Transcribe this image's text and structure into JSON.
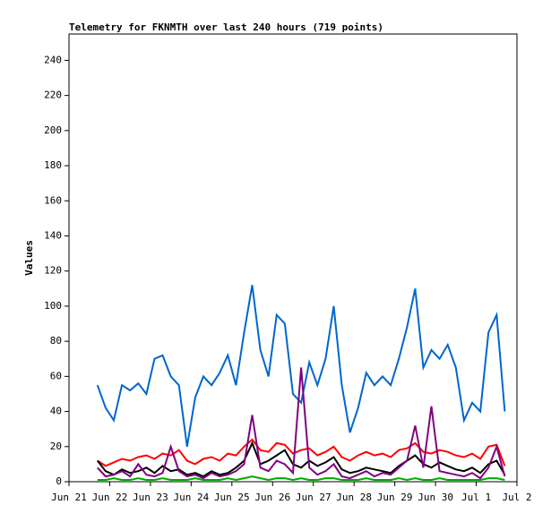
{
  "chart_data": {
    "type": "line",
    "title": "Telemetry for FKNMTH over last 240 hours (719 points)",
    "ylabel": "Values",
    "xlim": [
      0,
      11
    ],
    "xticks": [
      {
        "value": 0,
        "label": "Jun 21"
      },
      {
        "value": 1,
        "label": "Jun 22"
      },
      {
        "value": 2,
        "label": "Jun 23"
      },
      {
        "value": 3,
        "label": "Jun 24"
      },
      {
        "value": 4,
        "label": "Jun 25"
      },
      {
        "value": 5,
        "label": "Jun 26"
      },
      {
        "value": 6,
        "label": "Jun 27"
      },
      {
        "value": 7,
        "label": "Jun 28"
      },
      {
        "value": 8,
        "label": "Jun 29"
      },
      {
        "value": 9,
        "label": "Jun 30"
      },
      {
        "value": 10,
        "label": "Jul 1"
      },
      {
        "value": 11,
        "label": "Jul 2"
      }
    ],
    "ylim": [
      0,
      255
    ],
    "yticks": [
      0,
      20,
      40,
      60,
      80,
      100,
      120,
      140,
      160,
      180,
      200,
      220,
      240
    ],
    "x": [
      0.7,
      0.9,
      1.1,
      1.3,
      1.5,
      1.7,
      1.9,
      2.1,
      2.3,
      2.5,
      2.7,
      2.9,
      3.1,
      3.3,
      3.5,
      3.7,
      3.9,
      4.1,
      4.3,
      4.5,
      4.7,
      4.9,
      5.1,
      5.3,
      5.5,
      5.7,
      5.9,
      6.1,
      6.3,
      6.5,
      6.7,
      6.9,
      7.1,
      7.3,
      7.5,
      7.7,
      7.9,
      8.1,
      8.3,
      8.5,
      8.7,
      8.9,
      9.1,
      9.3,
      9.5,
      9.7,
      9.9,
      10.1,
      10.3,
      10.5,
      10.7
    ],
    "series": [
      {
        "name": "blue",
        "color": "#0066cc",
        "values": [
          55,
          42,
          35,
          55,
          52,
          56,
          50,
          70,
          72,
          60,
          55,
          20,
          48,
          60,
          55,
          62,
          72,
          55,
          85,
          112,
          75,
          60,
          95,
          90,
          50,
          45,
          68,
          55,
          70,
          100,
          55,
          28,
          42,
          62,
          55,
          60,
          55,
          70,
          88,
          110,
          65,
          75,
          70,
          78,
          65,
          35,
          45,
          40,
          85,
          95,
          40
        ]
      },
      {
        "name": "red",
        "color": "#ff0000",
        "values": [
          12,
          9,
          11,
          13,
          12,
          14,
          15,
          13,
          16,
          15,
          18,
          12,
          10,
          13,
          14,
          12,
          16,
          15,
          20,
          24,
          18,
          17,
          22,
          21,
          16,
          18,
          19,
          15,
          17,
          20,
          14,
          12,
          15,
          17,
          15,
          16,
          14,
          18,
          19,
          22,
          17,
          16,
          18,
          17,
          15,
          14,
          16,
          13,
          20,
          21,
          9
        ]
      },
      {
        "name": "black",
        "color": "#000000",
        "values": [
          12,
          6,
          4,
          7,
          5,
          6,
          8,
          5,
          9,
          6,
          7,
          4,
          5,
          3,
          6,
          4,
          5,
          8,
          12,
          22,
          10,
          12,
          15,
          18,
          10,
          8,
          12,
          9,
          11,
          14,
          7,
          5,
          6,
          8,
          7,
          6,
          5,
          9,
          12,
          15,
          10,
          8,
          11,
          9,
          7,
          6,
          8,
          5,
          10,
          12,
          4
        ]
      },
      {
        "name": "purple",
        "color": "#800080",
        "values": [
          8,
          3,
          4,
          6,
          3,
          10,
          4,
          3,
          5,
          20,
          6,
          3,
          4,
          2,
          5,
          3,
          4,
          6,
          10,
          38,
          8,
          6,
          12,
          10,
          5,
          65,
          8,
          4,
          6,
          10,
          3,
          2,
          4,
          6,
          3,
          5,
          4,
          8,
          12,
          32,
          8,
          43,
          6,
          5,
          4,
          3,
          5,
          2,
          8,
          20,
          3
        ]
      },
      {
        "name": "green",
        "color": "#00aa00",
        "values": [
          1,
          1,
          2,
          1,
          1,
          2,
          1,
          1,
          2,
          1,
          1,
          1,
          2,
          1,
          1,
          1,
          2,
          1,
          2,
          3,
          2,
          1,
          2,
          2,
          1,
          2,
          1,
          1,
          2,
          2,
          1,
          1,
          1,
          2,
          1,
          1,
          1,
          2,
          1,
          2,
          1,
          1,
          2,
          1,
          1,
          1,
          1,
          1,
          2,
          2,
          1
        ]
      }
    ]
  }
}
